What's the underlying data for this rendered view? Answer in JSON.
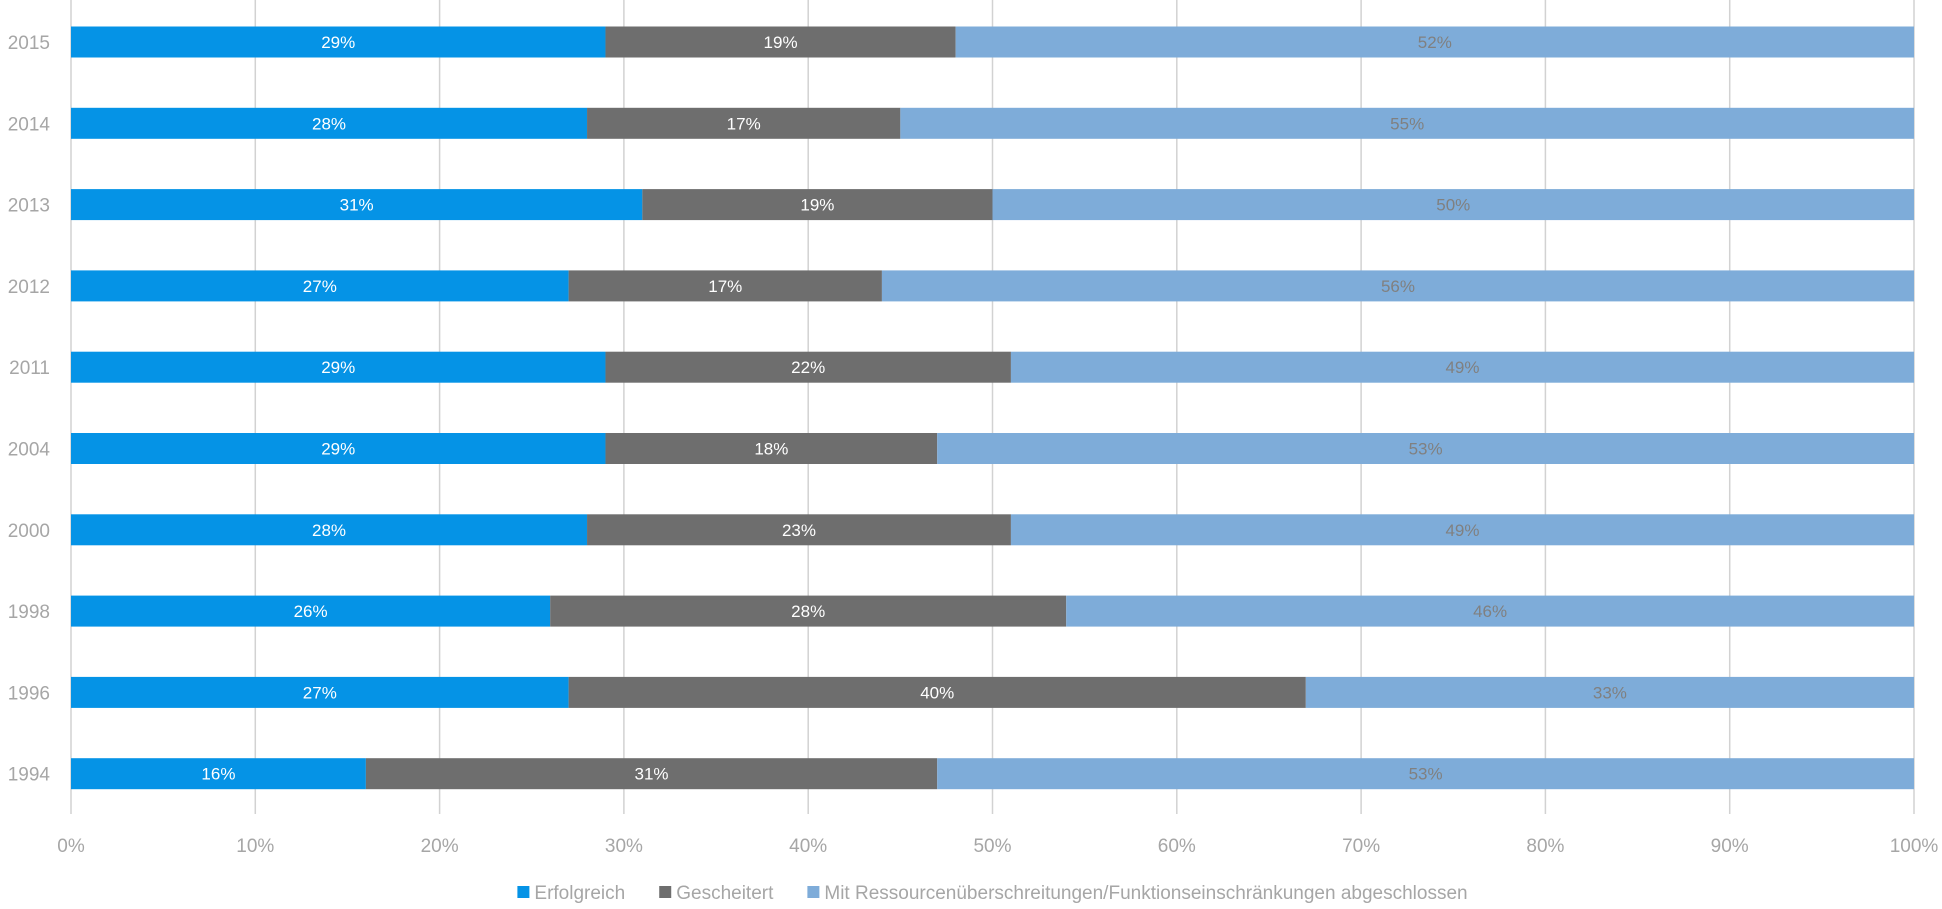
{
  "colors": {
    "erfolgreich": "#0593E6",
    "gescheitert": "#6E6E6E",
    "mit_einschraenkungen": "#7EACD9",
    "gridline": "#D2D2D2",
    "axis_text": "#A6A6A6",
    "label_light": "#FFFFFF",
    "label_dark": "#808080"
  },
  "chart_data": {
    "type": "bar",
    "orientation": "horizontal",
    "stacked": "percent",
    "categories": [
      "2015",
      "2014",
      "2013",
      "2012",
      "2011",
      "2004",
      "2000",
      "1998",
      "1996",
      "1994"
    ],
    "series": [
      {
        "name": "Erfolgreich",
        "values": [
          29,
          28,
          31,
          27,
          29,
          29,
          28,
          26,
          27,
          16
        ]
      },
      {
        "name": "Gescheitert",
        "values": [
          19,
          17,
          19,
          17,
          22,
          18,
          23,
          28,
          40,
          31
        ]
      },
      {
        "name": "Mit Ressourcenüberschreitungen/Funktionseinschränkungen abgeschlossen",
        "values": [
          52,
          55,
          50,
          56,
          49,
          53,
          49,
          46,
          33,
          53
        ]
      }
    ],
    "xticks": [
      "0%",
      "10%",
      "20%",
      "30%",
      "40%",
      "50%",
      "60%",
      "70%",
      "80%",
      "90%",
      "100%"
    ],
    "xlim": [
      0,
      100
    ],
    "unit": "%",
    "grid": "vertical",
    "legend_position": "bottom-center",
    "title": "",
    "xlabel": "",
    "ylabel": ""
  }
}
